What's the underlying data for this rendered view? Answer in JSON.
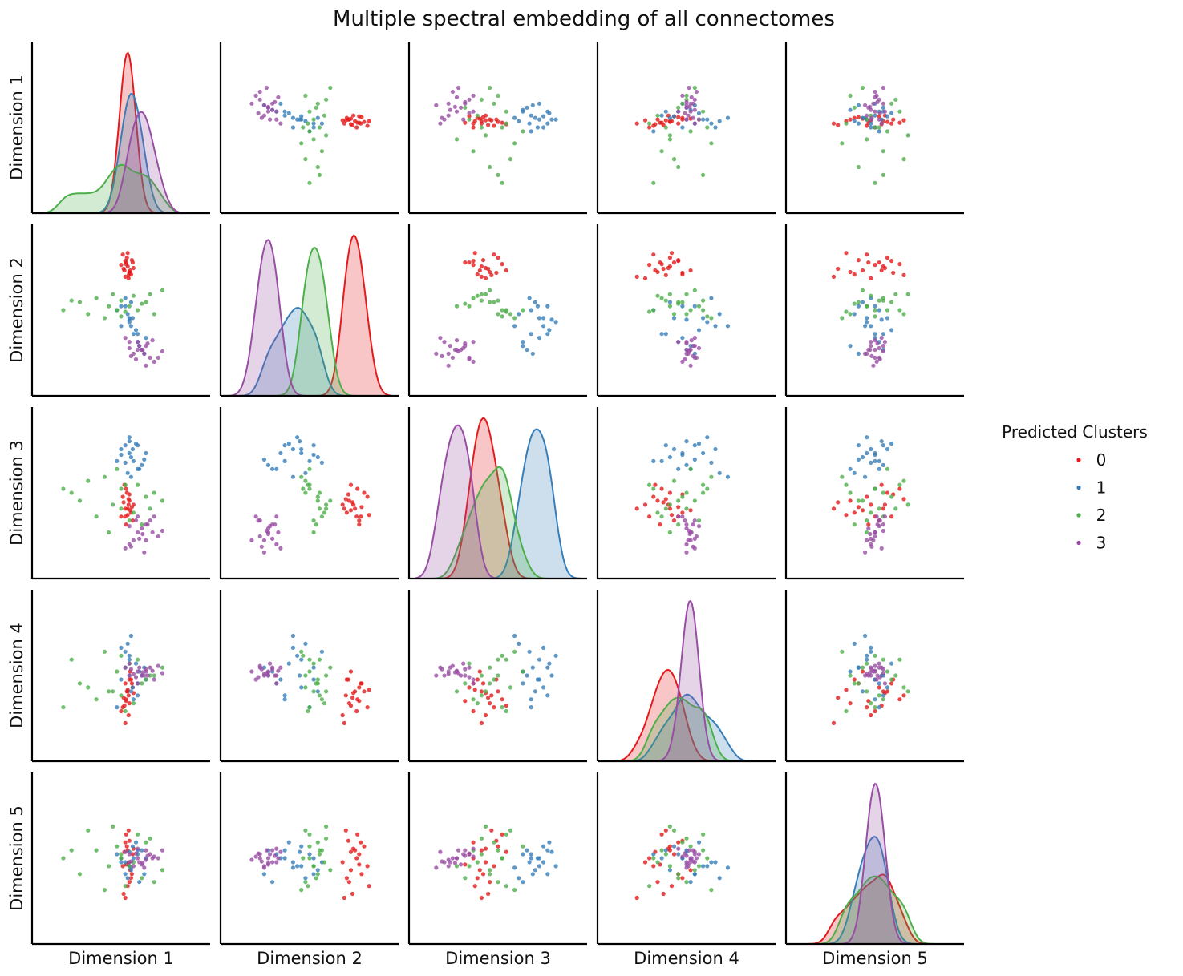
{
  "chart_data": {
    "type": "scatter",
    "title": "Multiple spectral embedding of all connectomes",
    "variables": [
      "Dimension 1",
      "Dimension 2",
      "Dimension 3",
      "Dimension 4",
      "Dimension 5"
    ],
    "diagonal": "kde",
    "axis_range": [
      -1,
      1
    ],
    "grid": false,
    "ticks": false,
    "legend": {
      "title": "Predicted Clusters",
      "placement": "right",
      "entries": [
        "0",
        "1",
        "2",
        "3"
      ]
    },
    "colors": {
      "0": "#e41a1c",
      "1": "#377eb8",
      "2": "#4daf4a",
      "3": "#984ea3"
    },
    "clusters": {
      "0": [
        [
          0.05,
          0.62,
          -0.3,
          -0.1,
          0.2
        ],
        [
          0.1,
          0.48,
          -0.1,
          -0.35,
          -0.3
        ],
        [
          0.08,
          0.55,
          -0.2,
          -0.2,
          0.1
        ],
        [
          0.02,
          0.7,
          -0.05,
          -0.4,
          -0.1
        ],
        [
          0.12,
          0.45,
          -0.25,
          -0.05,
          -0.25
        ],
        [
          0.06,
          0.58,
          0.05,
          -0.3,
          0.3
        ],
        [
          0.09,
          0.4,
          -0.15,
          -0.5,
          -0.05
        ],
        [
          0.14,
          0.6,
          -0.35,
          -0.15,
          0.05
        ],
        [
          0.03,
          0.52,
          -0.12,
          -0.28,
          -0.45
        ],
        [
          0.07,
          0.66,
          0.0,
          -0.2,
          0.15
        ],
        [
          0.11,
          0.5,
          -0.22,
          0.05,
          -0.15
        ],
        [
          0.0,
          0.57,
          -0.3,
          -0.45,
          0.0
        ],
        [
          0.09,
          0.44,
          -0.08,
          -0.25,
          0.35
        ],
        [
          0.13,
          0.63,
          -0.18,
          -0.1,
          -0.2
        ],
        [
          0.04,
          0.5,
          0.1,
          -0.38,
          0.08
        ],
        [
          0.08,
          0.72,
          -0.28,
          -0.18,
          -0.35
        ],
        [
          0.1,
          0.47,
          -0.02,
          -0.05,
          0.22
        ],
        [
          0.06,
          0.6,
          -0.4,
          -0.32,
          -0.08
        ],
        [
          0.15,
          0.53,
          -0.15,
          -0.22,
          0.12
        ],
        [
          0.05,
          0.42,
          -0.2,
          -0.6,
          -0.5
        ]
      ],
      "1": [
        [
          0.1,
          -0.1,
          0.5,
          0.2,
          -0.1
        ],
        [
          0.2,
          -0.4,
          0.3,
          -0.1,
          0.05
        ],
        [
          0.05,
          0.05,
          0.6,
          0.1,
          -0.2
        ],
        [
          0.15,
          -0.3,
          0.4,
          -0.3,
          0.0
        ],
        [
          0.0,
          -0.2,
          0.55,
          0.35,
          -0.05
        ],
        [
          0.25,
          -0.5,
          0.35,
          0.0,
          0.1
        ],
        [
          0.12,
          0.1,
          0.45,
          -0.2,
          -0.15
        ],
        [
          0.18,
          -0.25,
          0.62,
          0.15,
          0.2
        ],
        [
          0.08,
          -0.05,
          0.25,
          0.4,
          -0.25
        ],
        [
          0.3,
          -0.35,
          0.5,
          -0.05,
          0.0
        ],
        [
          0.1,
          -0.15,
          0.7,
          0.25,
          -0.1
        ],
        [
          -0.05,
          0.0,
          0.4,
          -0.4,
          0.05
        ],
        [
          0.22,
          -0.45,
          0.3,
          0.05,
          -0.3
        ],
        [
          0.14,
          -0.1,
          0.55,
          -0.15,
          0.15
        ],
        [
          0.05,
          0.15,
          0.38,
          0.3,
          -0.05
        ],
        [
          0.2,
          -0.3,
          0.6,
          -0.25,
          0.1
        ],
        [
          0.12,
          -0.2,
          0.2,
          0.5,
          -0.12
        ],
        [
          0.0,
          0.05,
          0.48,
          -0.05,
          0.0
        ],
        [
          0.28,
          -0.55,
          0.42,
          0.1,
          -0.2
        ],
        [
          0.1,
          -0.12,
          0.65,
          0.0,
          0.08
        ]
      ],
      "2": [
        [
          -0.5,
          0.1,
          -0.1,
          -0.1,
          -0.2
        ],
        [
          0.2,
          0.0,
          0.1,
          0.2,
          0.3
        ],
        [
          -0.3,
          0.15,
          -0.3,
          -0.3,
          0.1
        ],
        [
          0.4,
          -0.05,
          0.0,
          0.0,
          -0.3
        ],
        [
          -0.1,
          0.2,
          -0.15,
          -0.2,
          0.4
        ],
        [
          0.1,
          0.05,
          -0.35,
          0.15,
          -0.1
        ],
        [
          -0.7,
          0.0,
          0.05,
          -0.4,
          0.0
        ],
        [
          0.3,
          0.1,
          -0.05,
          -0.05,
          0.2
        ],
        [
          -0.2,
          -0.1,
          0.2,
          0.3,
          -0.4
        ],
        [
          0.0,
          0.12,
          -0.2,
          -0.25,
          0.05
        ],
        [
          0.5,
          0.25,
          -0.1,
          0.1,
          -0.15
        ],
        [
          -0.4,
          -0.05,
          0.15,
          -0.15,
          0.35
        ],
        [
          0.15,
          0.18,
          -0.25,
          -0.35,
          -0.05
        ],
        [
          -0.05,
          0.0,
          0.3,
          0.05,
          0.15
        ],
        [
          0.25,
          0.08,
          -0.4,
          -0.1,
          -0.25
        ],
        [
          -0.6,
          0.12,
          0.0,
          0.2,
          0.1
        ],
        [
          0.05,
          -0.02,
          0.1,
          -0.45,
          -0.35
        ],
        [
          0.35,
          0.2,
          -0.2,
          0.0,
          0.25
        ],
        [
          -0.15,
          0.05,
          -0.5,
          -0.2,
          -0.1
        ],
        [
          0.0,
          -0.08,
          0.05,
          0.25,
          0.0
        ]
      ],
      "3": [
        [
          0.2,
          -0.5,
          -0.5,
          0.05,
          0.0
        ],
        [
          0.35,
          -0.6,
          -0.35,
          0.1,
          0.05
        ],
        [
          0.1,
          -0.4,
          -0.65,
          0.0,
          -0.05
        ],
        [
          0.3,
          -0.45,
          -0.4,
          0.08,
          0.1
        ],
        [
          0.15,
          -0.55,
          -0.6,
          0.02,
          -0.1
        ],
        [
          0.4,
          -0.65,
          -0.3,
          -0.05,
          0.02
        ],
        [
          0.05,
          -0.35,
          -0.7,
          0.1,
          0.08
        ],
        [
          0.25,
          -0.5,
          -0.45,
          0.0,
          -0.08
        ],
        [
          0.45,
          -0.6,
          -0.55,
          0.12,
          0.0
        ],
        [
          0.2,
          -0.4,
          -0.3,
          -0.1,
          0.12
        ],
        [
          0.3,
          -0.7,
          -0.6,
          0.05,
          -0.02
        ],
        [
          0.1,
          -0.48,
          -0.42,
          0.15,
          0.05
        ],
        [
          0.28,
          -0.55,
          -0.75,
          0.0,
          -0.12
        ],
        [
          0.38,
          -0.38,
          -0.5,
          0.06,
          0.0
        ],
        [
          0.18,
          -0.62,
          -0.35,
          -0.02,
          0.06
        ],
        [
          0.22,
          -0.45,
          -0.58,
          0.1,
          -0.05
        ],
        [
          0.5,
          -0.52,
          -0.48,
          0.03,
          0.1
        ],
        [
          0.12,
          -0.58,
          -0.68,
          0.08,
          -0.04
        ],
        [
          0.32,
          -0.42,
          -0.4,
          0.0,
          0.03
        ],
        [
          0.26,
          -0.5,
          -0.52,
          0.04,
          -0.06
        ]
      ]
    }
  }
}
